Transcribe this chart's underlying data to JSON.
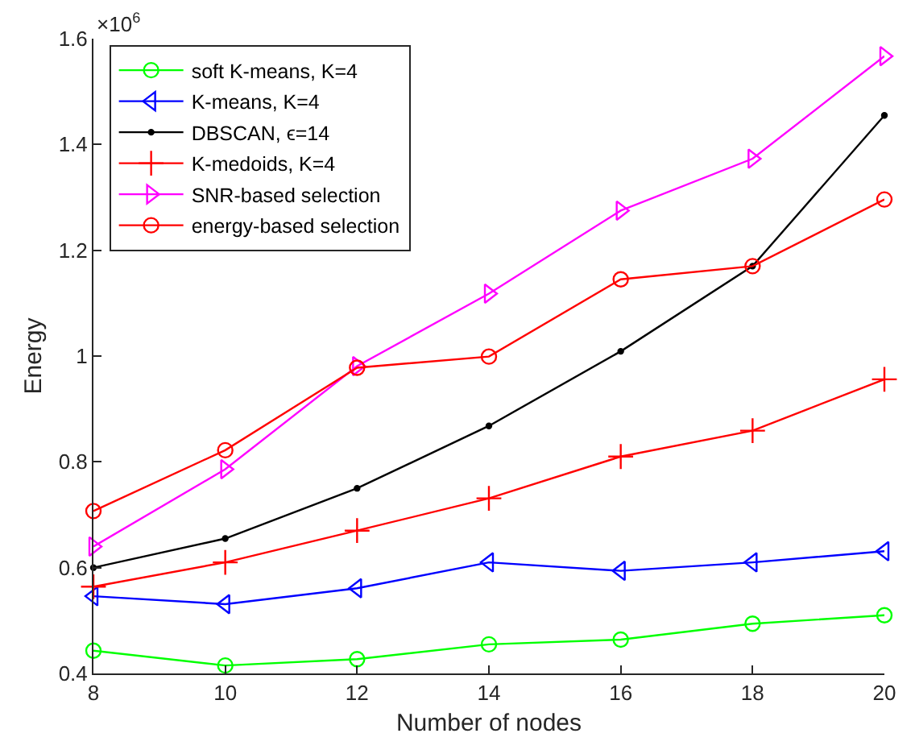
{
  "chart_data": {
    "type": "line",
    "xlabel": "Number of nodes",
    "ylabel": "Energy",
    "x": [
      8,
      10,
      12,
      14,
      16,
      18,
      20
    ],
    "xlim": [
      8,
      20
    ],
    "xticks": [
      8,
      10,
      12,
      14,
      16,
      18,
      20
    ],
    "ylim": [
      0.4,
      1.6
    ],
    "yticks": [
      0.4,
      0.6,
      0.8,
      1,
      1.2,
      1.4,
      1.6
    ],
    "annotations": [
      "×10$^{6}$"
    ],
    "legend": "top left",
    "line_style": "solid",
    "series": [
      {
        "name": "soft K-means, K=4",
        "color": "#00ff00",
        "marker": "circle",
        "values": [
          0.443,
          0.415,
          0.427,
          0.455,
          0.464,
          0.494,
          0.51
        ]
      },
      {
        "name": "K-means, K=4",
        "color": "#0000ff",
        "marker": "triangle-left",
        "values": [
          0.546,
          0.531,
          0.561,
          0.61,
          0.594,
          0.61,
          0.631
        ]
      },
      {
        "name": "DBSCAN, ϵ=14",
        "color": "#000000",
        "marker": "point",
        "values": [
          0.6,
          0.655,
          0.75,
          0.868,
          1.009,
          1.17,
          1.455
        ]
      },
      {
        "name": "K-medoids, K=4",
        "color": "#ff0000",
        "marker": "cross",
        "values": [
          0.564,
          0.61,
          0.67,
          0.731,
          0.81,
          0.859,
          0.956
        ]
      },
      {
        "name": "SNR-based selection",
        "color": "#ff00ff",
        "marker": "triangle-right",
        "values": [
          0.64,
          0.786,
          0.981,
          1.118,
          1.275,
          1.373,
          1.567
        ]
      },
      {
        "name": "energy-based selection",
        "color": "#ff0000",
        "marker": "circle",
        "values": [
          0.707,
          0.822,
          0.978,
          0.999,
          1.145,
          1.17,
          1.296
        ]
      }
    ]
  }
}
